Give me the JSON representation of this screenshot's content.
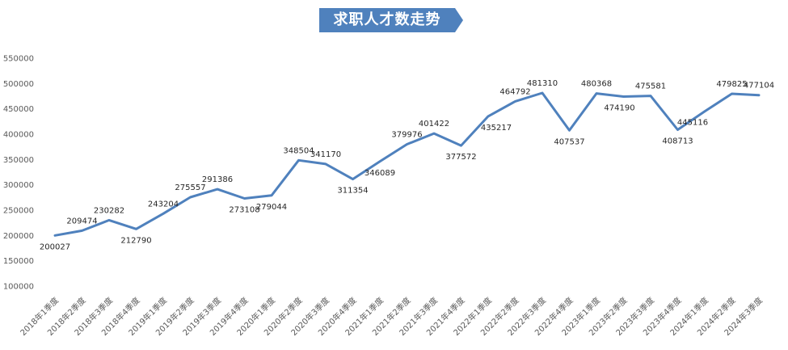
{
  "chart_data": {
    "type": "line",
    "title": "求职人才数走势",
    "xlabel": "",
    "ylabel": "",
    "ylim": [
      100000,
      550000
    ],
    "yticks": [
      "100000",
      "150000",
      "200000",
      "250000",
      "300000",
      "350000",
      "400000",
      "450000",
      "500000",
      "550000"
    ],
    "grid": false,
    "legend": "none",
    "line_color": "#4F81BD",
    "categories": [
      "2018年1季度",
      "2018年2季度",
      "2018年3季度",
      "2018年4季度",
      "2019年1季度",
      "2019年2季度",
      "2019年3季度",
      "2019年4季度",
      "2020年1季度",
      "2020年2季度",
      "2020年3季度",
      "2020年4季度",
      "2021年1季度",
      "2021年2季度",
      "2021年3季度",
      "2021年4季度",
      "2022年1季度",
      "2022年2季度",
      "2022年3季度",
      "2022年4季度",
      "2023年1季度",
      "2023年2季度",
      "2023年3季度",
      "2023年4季度",
      "2024年1季度",
      "2024年2季度",
      "2024年3季度"
    ],
    "values": [
      200027,
      209474,
      230282,
      212790,
      243204,
      275557,
      291386,
      273108,
      279044,
      348504,
      341170,
      311354,
      346089,
      379976,
      401422,
      377572,
      435217,
      464792,
      481310,
      407537,
      480368,
      474190,
      475581,
      408713,
      445116,
      479825,
      477104
    ],
    "data_labels": [
      "200027",
      "209474",
      "230282",
      "212790",
      "243204",
      "275557",
      "291386",
      "273108",
      "279044",
      "348504",
      "341170",
      "311354",
      "346089",
      "379976",
      "401422",
      "377572",
      "435217",
      "464792",
      "481310",
      "407537",
      "480368",
      "474190",
      "475581",
      "408713",
      "445116",
      "479825",
      "477104"
    ]
  }
}
